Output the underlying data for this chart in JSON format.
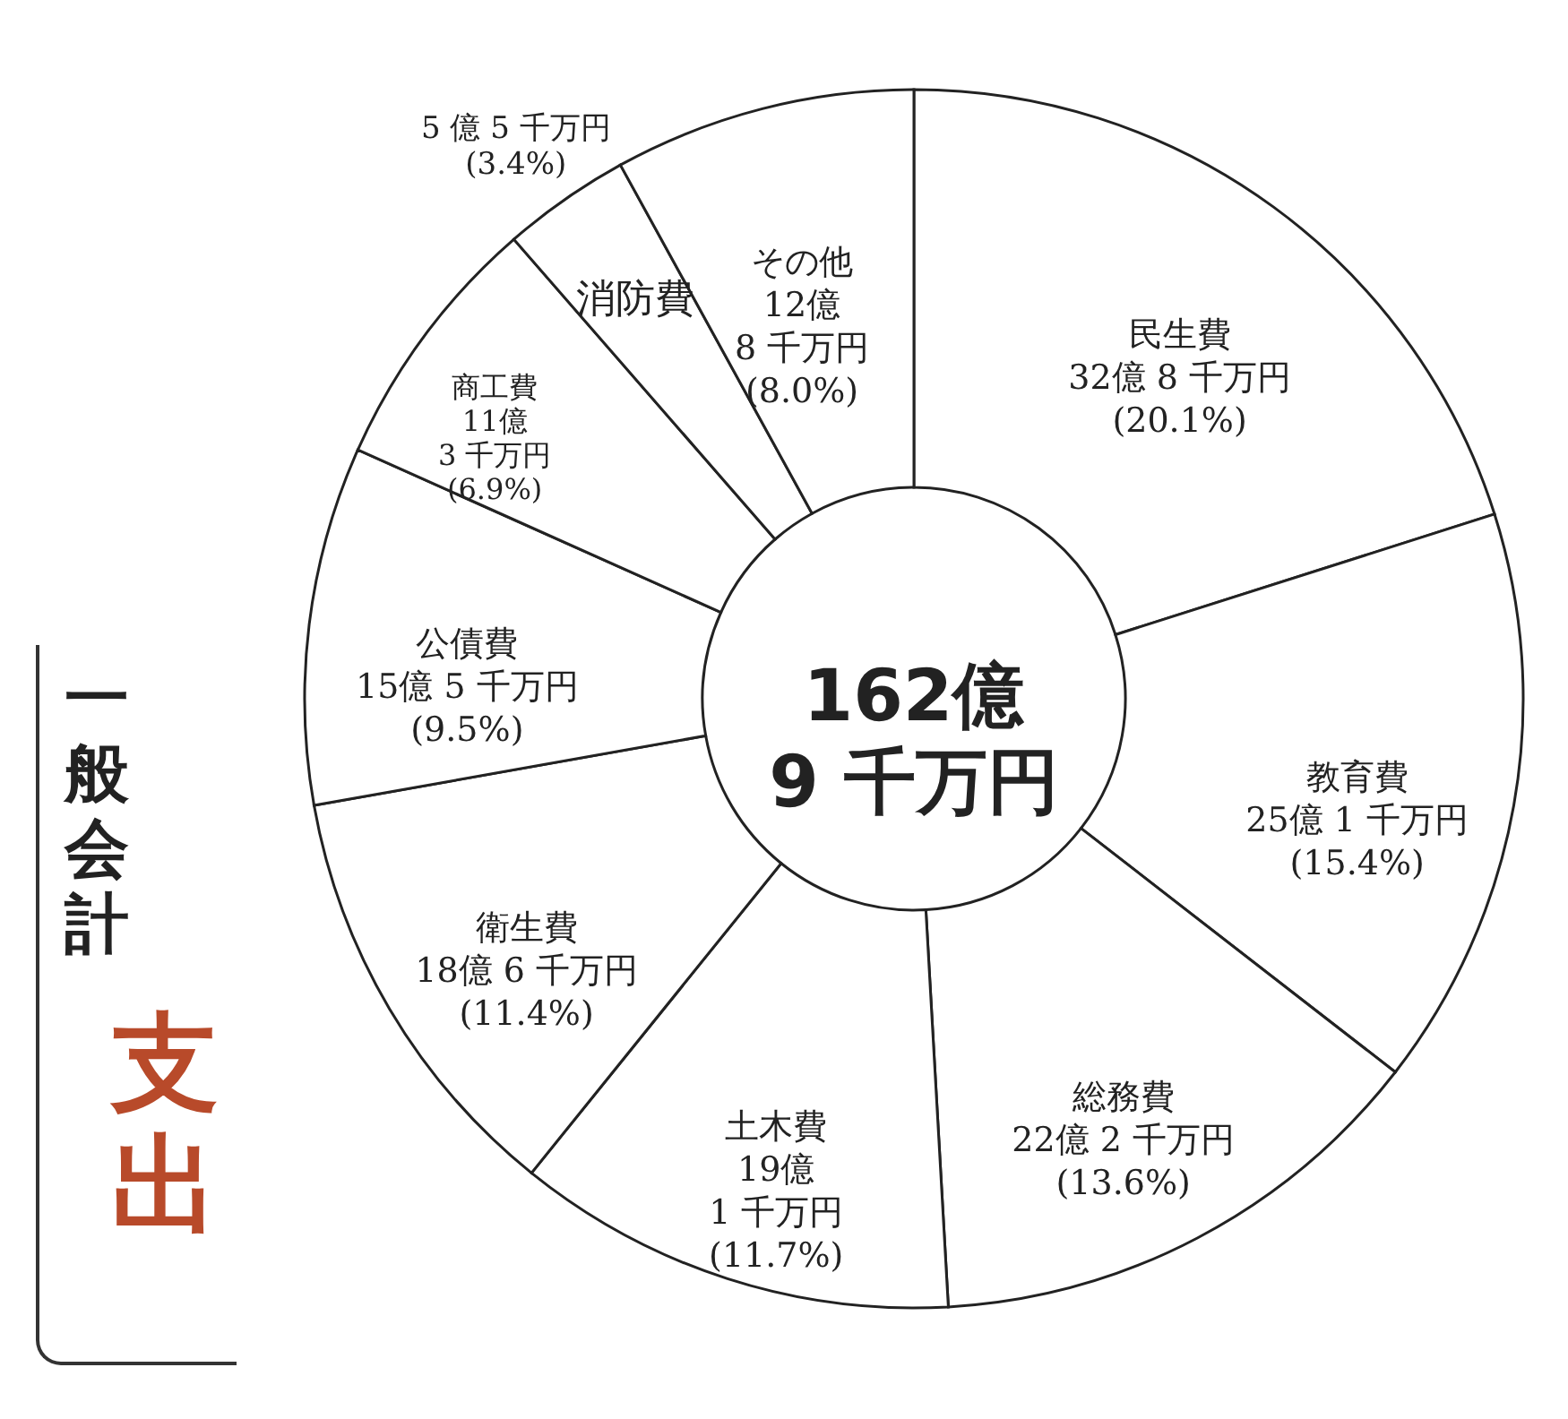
{
  "chart_data": {
    "type": "donut",
    "title": "支出",
    "subtitle": "一般会計",
    "categories": [
      "民生費",
      "教育費",
      "総務費",
      "土木費",
      "衛生費",
      "公債費",
      "商工費",
      "消防費",
      "その他"
    ],
    "values": [
      20.1,
      15.4,
      13.6,
      11.7,
      11.4,
      9.5,
      6.9,
      3.4,
      8.0
    ],
    "value_labels": [
      "32億 8 千万円\n(20.1%)",
      "25億 1 千万円\n(15.4%)",
      "22億 2 千万円\n(13.6%)",
      "19億\n1 千万円\n(11.7%)",
      "18億 6 千万円\n(11.4%)",
      "15億 5 千万円\n(9.5%)",
      "11億\n3 千万円\n(6.9%)",
      "5 億 5 千万円\n(3.4%)",
      "12億\n8 千万円\n(8.0%)"
    ],
    "colors": [
      "#ffffff",
      "#ffffff",
      "#ffffff",
      "#ffffff",
      "#ffffff",
      "#ffffff",
      "#ffffff",
      "#ffffff",
      "#ffffff"
    ],
    "annotations": [
      "162億\n9 千万円"
    ]
  }
}
